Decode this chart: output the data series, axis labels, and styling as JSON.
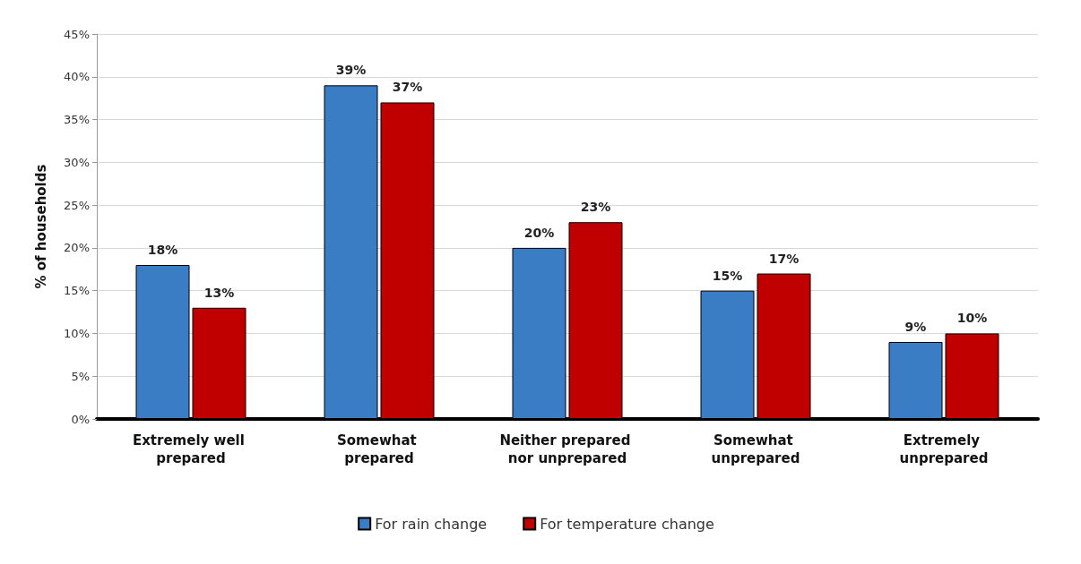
{
  "chart_data": {
    "type": "bar",
    "ylabel": "% of households",
    "categories": [
      "Extremely well prepared",
      "Somewhat prepared",
      "Neither prepared nor unprepared",
      "Somewhat unprepared",
      "Extremely unprepared"
    ],
    "series": [
      {
        "name": "For rain change",
        "color": "#3b7dc4",
        "values": [
          18,
          39,
          20,
          15,
          9
        ],
        "value_labels": [
          "18%",
          "39%",
          "20%",
          "15%",
          "9%"
        ]
      },
      {
        "name": "For temperature change",
        "color": "#c00000",
        "values": [
          13,
          37,
          23,
          17,
          10
        ],
        "value_labels": [
          "13%",
          "37%",
          "23%",
          "17%",
          "10%"
        ]
      }
    ],
    "ylim": [
      0,
      45
    ],
    "yticks": [
      {
        "value": 0,
        "label": "0%"
      },
      {
        "value": 5,
        "label": "5%"
      },
      {
        "value": 10,
        "label": "10%"
      },
      {
        "value": 15,
        "label": "15%"
      },
      {
        "value": 20,
        "label": "20%"
      },
      {
        "value": 25,
        "label": "25%"
      },
      {
        "value": 30,
        "label": "30%"
      },
      {
        "value": 35,
        "label": "35%"
      },
      {
        "value": 40,
        "label": "40%"
      },
      {
        "value": 45,
        "label": "45%"
      }
    ],
    "grid": "y",
    "legend": "bottom"
  }
}
